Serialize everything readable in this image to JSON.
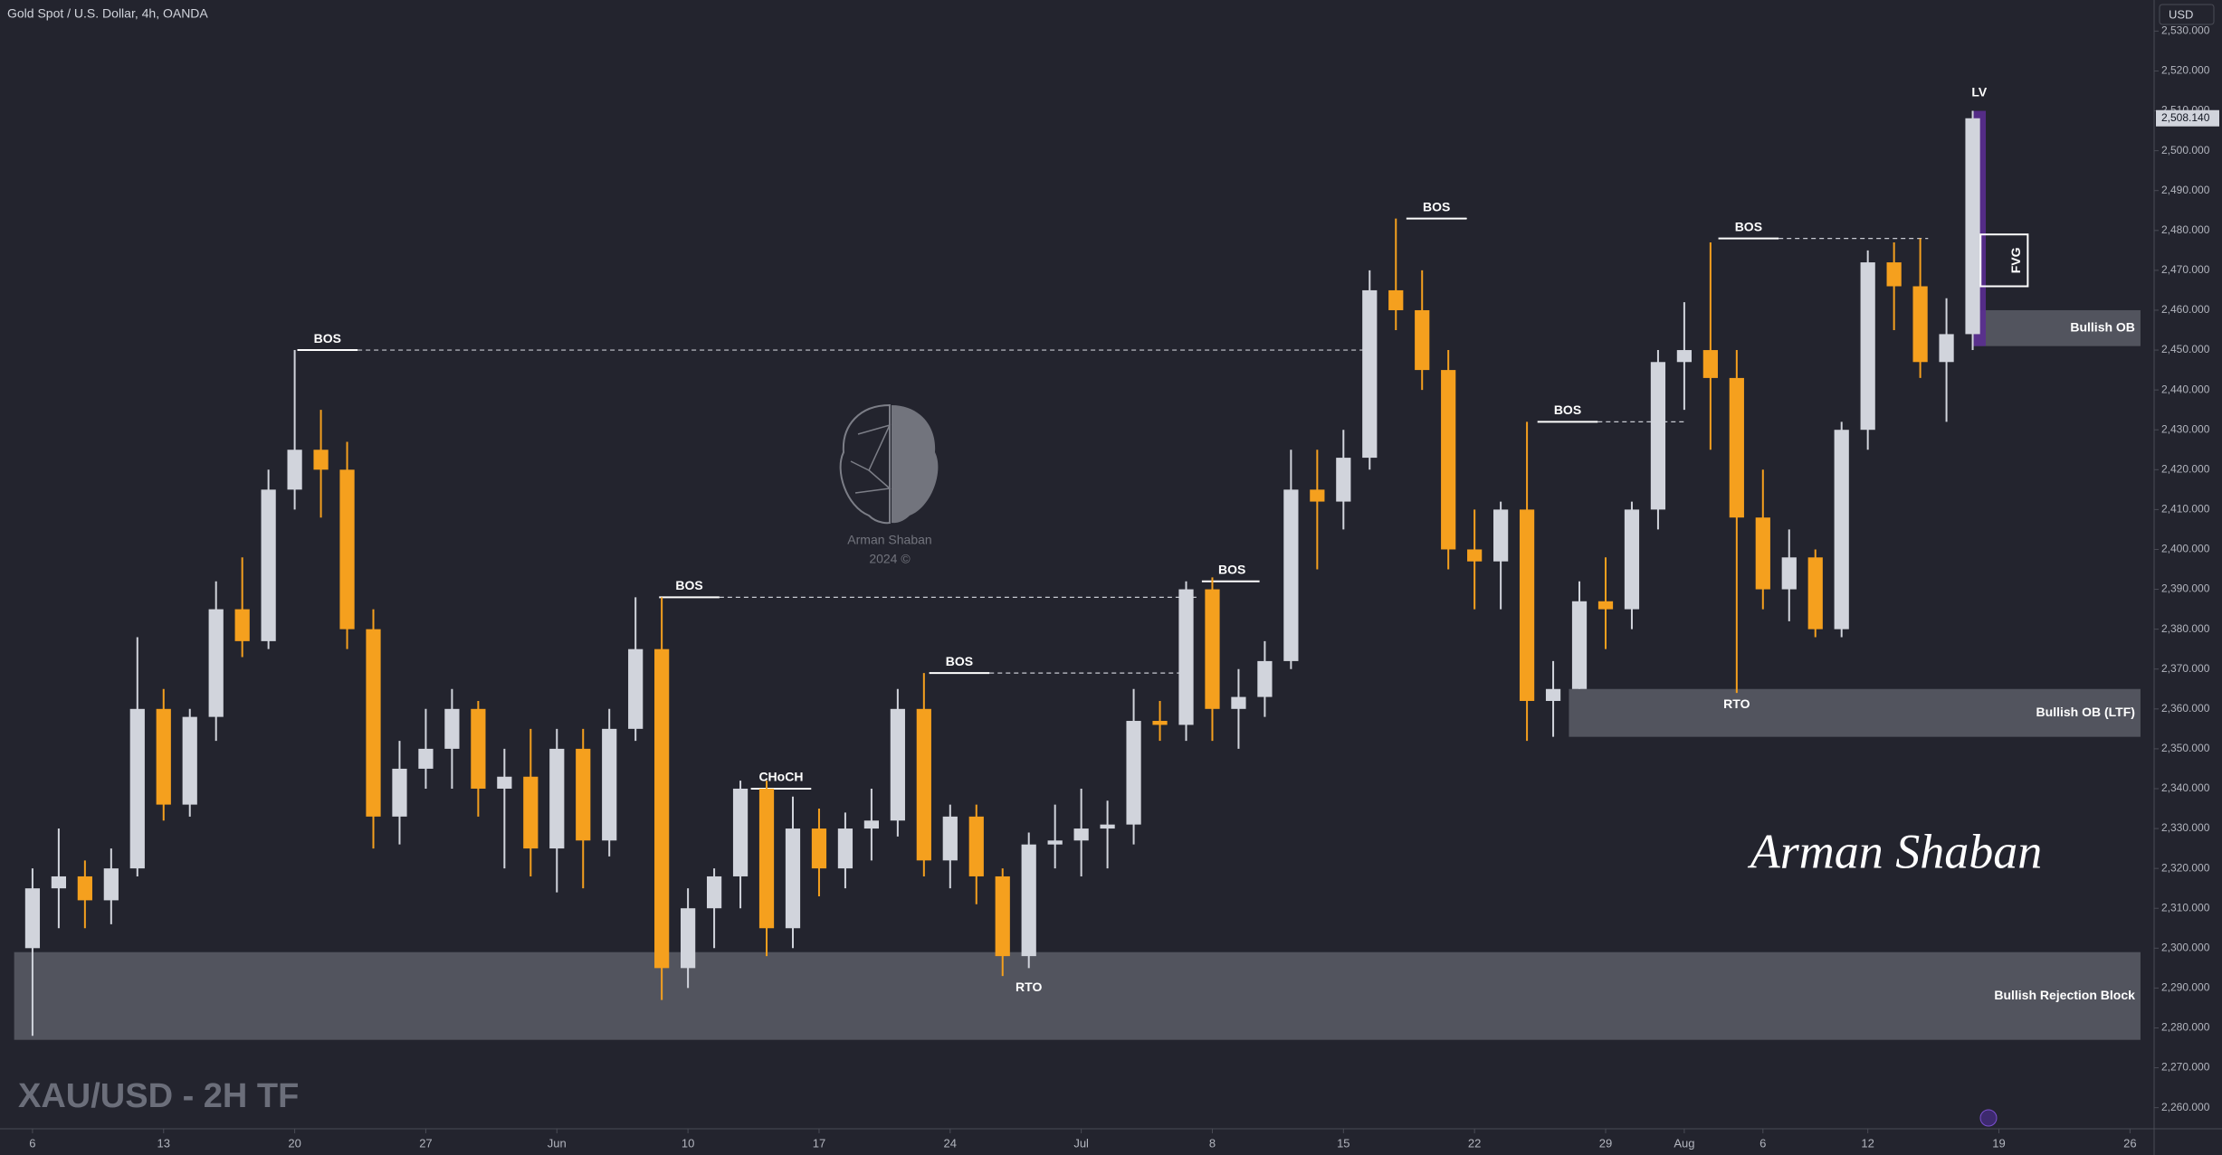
{
  "chart_data": {
    "type": "candlestick",
    "title": "Gold Spot / U.S. Dollar, 4h, OANDA",
    "currency": "USD",
    "watermark": "XAU/USD - 2H TF",
    "signature": "Arman Shaban",
    "logo_name": "Arman Shaban",
    "logo_year": "2024 ©",
    "last_price_label": "2,508.140",
    "up_color": "#d1d4dc",
    "down_color": "#f5a01e",
    "xlim": [
      -1.24,
      80.92
    ],
    "ylim": [
      2254.7,
      2537.8
    ],
    "xticks": [
      {
        "value": 0,
        "label": "6"
      },
      {
        "value": 5,
        "label": "13"
      },
      {
        "value": 10,
        "label": "20"
      },
      {
        "value": 15,
        "label": "27"
      },
      {
        "value": 20,
        "label": "Jun"
      },
      {
        "value": 25,
        "label": "10"
      },
      {
        "value": 30,
        "label": "17"
      },
      {
        "value": 35,
        "label": "24"
      },
      {
        "value": 40,
        "label": "Jul"
      },
      {
        "value": 45,
        "label": "8"
      },
      {
        "value": 50,
        "label": "15"
      },
      {
        "value": 55,
        "label": "22"
      },
      {
        "value": 60,
        "label": "29"
      },
      {
        "value": 63,
        "label": "Aug"
      },
      {
        "value": 66,
        "label": "6"
      },
      {
        "value": 70,
        "label": "12"
      },
      {
        "value": 75,
        "label": "19"
      },
      {
        "value": 80,
        "label": "26"
      }
    ],
    "yticks": [
      {
        "value": 2260,
        "label": "2,260.000"
      },
      {
        "value": 2270,
        "label": "2,270.000"
      },
      {
        "value": 2280,
        "label": "2,280.000"
      },
      {
        "value": 2290,
        "label": "2,290.000"
      },
      {
        "value": 2300,
        "label": "2,300.000"
      },
      {
        "value": 2310,
        "label": "2,310.000"
      },
      {
        "value": 2320,
        "label": "2,320.000"
      },
      {
        "value": 2330,
        "label": "2,330.000"
      },
      {
        "value": 2340,
        "label": "2,340.000"
      },
      {
        "value": 2350,
        "label": "2,350.000"
      },
      {
        "value": 2360,
        "label": "2,360.000"
      },
      {
        "value": 2370,
        "label": "2,370.000"
      },
      {
        "value": 2380,
        "label": "2,380.000"
      },
      {
        "value": 2390,
        "label": "2,390.000"
      },
      {
        "value": 2400,
        "label": "2,400.000"
      },
      {
        "value": 2410,
        "label": "2,410.000"
      },
      {
        "value": 2420,
        "label": "2,420.000"
      },
      {
        "value": 2430,
        "label": "2,430.000"
      },
      {
        "value": 2440,
        "label": "2,440.000"
      },
      {
        "value": 2450,
        "label": "2,450.000"
      },
      {
        "value": 2460,
        "label": "2,460.000"
      },
      {
        "value": 2470,
        "label": "2,470.000"
      },
      {
        "value": 2480,
        "label": "2,480.000"
      },
      {
        "value": 2490,
        "label": "2,490.000"
      },
      {
        "value": 2500,
        "label": "2,500.000"
      },
      {
        "value": 2510,
        "label": "2,510.000"
      },
      {
        "value": 2520,
        "label": "2,520.000"
      },
      {
        "value": 2530,
        "label": "2,530.000"
      }
    ],
    "candles": {
      "x": [
        0,
        1,
        2,
        3,
        4,
        5,
        6,
        7,
        8,
        9,
        10,
        11,
        12,
        13,
        14,
        15,
        16,
        17,
        18,
        19,
        20,
        21,
        22,
        23,
        24,
        25,
        26,
        27,
        28,
        29,
        30,
        31,
        32,
        33,
        34,
        35,
        36,
        37,
        38,
        39,
        40,
        41,
        42,
        43,
        44,
        45,
        46,
        47,
        48,
        49,
        50,
        51,
        52,
        53,
        54,
        55,
        56,
        57,
        58,
        59,
        60,
        61,
        62,
        63,
        64,
        65,
        66,
        67,
        68,
        69,
        70,
        71,
        72,
        73,
        74
      ],
      "open": [
        2300,
        2315,
        2318,
        2312,
        2320,
        2360,
        2336,
        2358,
        2385,
        2377,
        2415,
        2425,
        2420,
        2380,
        2333,
        2345,
        2350,
        2360,
        2340,
        2343,
        2325,
        2350,
        2327,
        2355,
        2375,
        2295,
        2310,
        2318,
        2340,
        2305,
        2330,
        2320,
        2330,
        2332,
        2360,
        2322,
        2333,
        2318,
        2298,
        2326,
        2327,
        2330,
        2331,
        2357,
        2356,
        2390,
        2360,
        2363,
        2372,
        2415,
        2412,
        2423,
        2465,
        2460,
        2445,
        2400,
        2397,
        2410,
        2362,
        2365,
        2387,
        2385,
        2410,
        2447,
        2450,
        2443,
        2408,
        2390,
        2398,
        2380,
        2430,
        2472,
        2466,
        2447,
        2454
      ],
      "high": [
        2320,
        2330,
        2322,
        2325,
        2378,
        2365,
        2360,
        2392,
        2398,
        2420,
        2450,
        2435,
        2427,
        2385,
        2352,
        2360,
        2365,
        2362,
        2350,
        2355,
        2355,
        2355,
        2360,
        2388,
        2388,
        2315,
        2320,
        2342,
        2342,
        2338,
        2335,
        2334,
        2340,
        2365,
        2369,
        2336,
        2336,
        2320,
        2329,
        2336,
        2340,
        2337,
        2365,
        2362,
        2392,
        2393,
        2370,
        2377,
        2425,
        2425,
        2430,
        2470,
        2483,
        2470,
        2450,
        2410,
        2412,
        2432,
        2372,
        2392,
        2398,
        2412,
        2450,
        2462,
        2477,
        2450,
        2420,
        2405,
        2400,
        2432,
        2475,
        2477,
        2478,
        2463,
        2510
      ],
      "low": [
        2278,
        2305,
        2305,
        2306,
        2318,
        2332,
        2333,
        2352,
        2373,
        2375,
        2410,
        2408,
        2375,
        2325,
        2326,
        2340,
        2340,
        2333,
        2320,
        2318,
        2314,
        2315,
        2323,
        2352,
        2287,
        2290,
        2300,
        2310,
        2298,
        2300,
        2313,
        2315,
        2322,
        2328,
        2318,
        2315,
        2311,
        2293,
        2295,
        2320,
        2318,
        2320,
        2326,
        2352,
        2352,
        2352,
        2350,
        2358,
        2370,
        2395,
        2405,
        2420,
        2455,
        2440,
        2395,
        2385,
        2385,
        2352,
        2353,
        2365,
        2375,
        2380,
        2405,
        2435,
        2425,
        2364,
        2385,
        2382,
        2378,
        2378,
        2425,
        2455,
        2443,
        2432,
        2450
      ],
      "close": [
        2315,
        2318,
        2312,
        2320,
        2360,
        2336,
        2358,
        2385,
        2377,
        2415,
        2425,
        2420,
        2380,
        2333,
        2345,
        2350,
        2360,
        2340,
        2343,
        2325,
        2350,
        2327,
        2355,
        2375,
        2295,
        2310,
        2318,
        2340,
        2305,
        2330,
        2320,
        2330,
        2332,
        2360,
        2322,
        2333,
        2318,
        2298,
        2326,
        2327,
        2330,
        2331,
        2357,
        2356,
        2390,
        2360,
        2363,
        2372,
        2415,
        2412,
        2423,
        2465,
        2460,
        2445,
        2400,
        2397,
        2410,
        2362,
        2365,
        2387,
        2385,
        2410,
        2447,
        2450,
        2443,
        2408,
        2390,
        2398,
        2380,
        2430,
        2472,
        2466,
        2447,
        2454,
        2508.14
      ]
    },
    "structure_lines": [
      {
        "label": "BOS",
        "level": 2450,
        "x": [
          10.1,
          51.2
        ]
      },
      {
        "label": "BOS",
        "level": 2388,
        "x": [
          23.9,
          44.4
        ]
      },
      {
        "label": "BOS",
        "level": 2369,
        "x": [
          34.2,
          43.9
        ]
      },
      {
        "label": "CHoCH",
        "level": 2340,
        "x": [
          27.4,
          29.7
        ]
      },
      {
        "label": "BOS",
        "level": 2392,
        "x": [
          44.6,
          46.8
        ]
      },
      {
        "label": "BOS",
        "level": 2483,
        "x": [
          52.4,
          54.7
        ]
      },
      {
        "label": "BOS",
        "level": 2432,
        "x": [
          57.4,
          63.1
        ]
      },
      {
        "label": "BOS",
        "level": 2478,
        "x": [
          64.3,
          72.3
        ]
      }
    ],
    "point_labels": [
      {
        "label": "RTO",
        "x": 38,
        "y": 2290
      },
      {
        "label": "RTO",
        "x": 65,
        "y": 2361
      }
    ],
    "zones": [
      {
        "label": "Bullish Rejection Block",
        "x": [
          -0.7,
          80.4
        ],
        "y": [
          2277,
          2299
        ],
        "color": "#5b5d66"
      },
      {
        "label": "Bullish OB (LTF)",
        "x": [
          58.6,
          80.4
        ],
        "y": [
          2353,
          2365
        ],
        "color": "#5b5d66"
      },
      {
        "label": "Bullish OB",
        "x": [
          74,
          80.4
        ],
        "y": [
          2451,
          2460
        ],
        "color": "#5b5d66"
      }
    ],
    "fvg": {
      "label": "FVG",
      "x": [
        74.3,
        76.1
      ],
      "y": [
        2466,
        2479
      ]
    },
    "liquidity_void": {
      "label": "LV",
      "x": [
        74,
        74.5
      ],
      "y": [
        2451,
        2510
      ],
      "color": "#5a2d91"
    }
  }
}
